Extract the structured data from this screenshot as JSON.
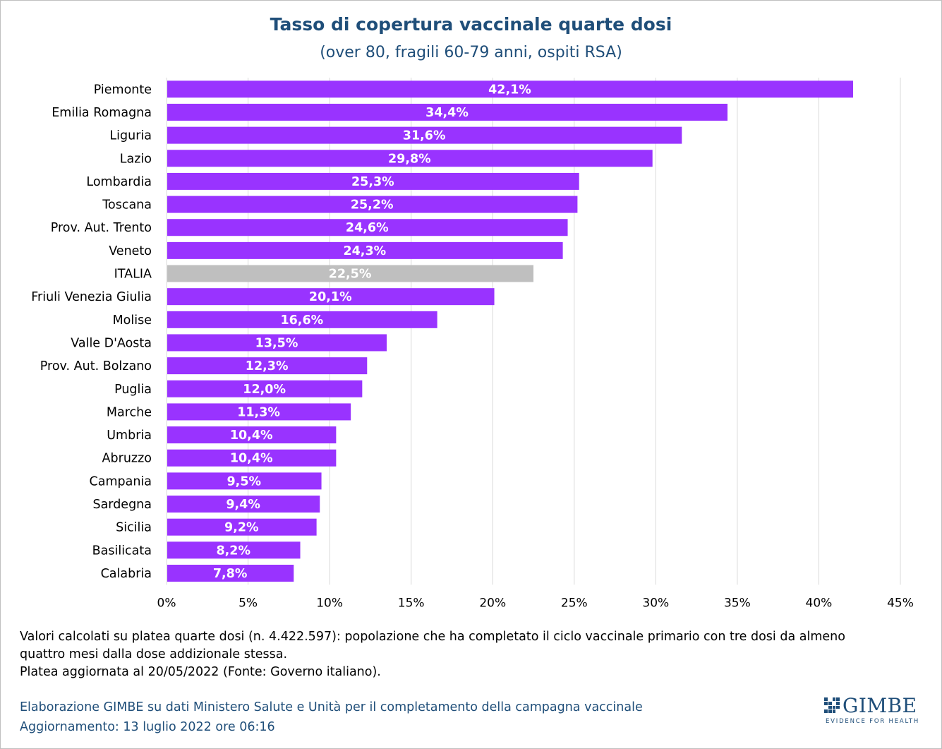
{
  "header": {
    "title": "Tasso di copertura vaccinale quarte dosi",
    "subtitle": "(over 80, fragili 60-79 anni, ospiti RSA)"
  },
  "chart_data": {
    "type": "bar",
    "orientation": "horizontal",
    "title": "Tasso di copertura vaccinale quarte dosi",
    "subtitle": "(over 80, fragili 60-79 anni, ospiti RSA)",
    "categories": [
      "Piemonte",
      "Emilia Romagna",
      "Liguria",
      "Lazio",
      "Lombardia",
      "Toscana",
      "Prov. Aut. Trento",
      "Veneto",
      "ITALIA",
      "Friuli Venezia Giulia",
      "Molise",
      "Valle D'Aosta",
      "Prov. Aut. Bolzano",
      "Puglia",
      "Marche",
      "Umbria",
      "Abruzzo",
      "Campania",
      "Sardegna",
      "Sicilia",
      "Basilicata",
      "Calabria"
    ],
    "values": [
      42.1,
      34.4,
      31.6,
      29.8,
      25.3,
      25.2,
      24.6,
      24.3,
      22.5,
      20.1,
      16.6,
      13.5,
      12.3,
      12.0,
      11.3,
      10.4,
      10.4,
      9.5,
      9.4,
      9.2,
      8.2,
      7.8
    ],
    "value_labels": [
      "42,1%",
      "34,4%",
      "31,6%",
      "29,8%",
      "25,3%",
      "25,2%",
      "24,6%",
      "24,3%",
      "22,5%",
      "20,1%",
      "16,6%",
      "13,5%",
      "12,3%",
      "12,0%",
      "11,3%",
      "10,4%",
      "10,4%",
      "9,5%",
      "9,4%",
      "9,2%",
      "8,2%",
      "7,8%"
    ],
    "highlight_category": "ITALIA",
    "colors": {
      "bar": "#9933ff",
      "highlight": "#bfbfbf",
      "label": "#ffffff",
      "grid": "#d9d9d9"
    },
    "xlim": [
      0,
      45
    ],
    "xticks": [
      0,
      5,
      10,
      15,
      20,
      25,
      30,
      35,
      40,
      45
    ],
    "xtick_labels": [
      "0%",
      "5%",
      "10%",
      "15%",
      "20%",
      "25%",
      "30%",
      "35%",
      "40%",
      "45%"
    ],
    "grid": true,
    "legend": false
  },
  "notes": {
    "line1": "Valori calcolati su platea quarte dosi (n. 4.422.597): popolazione che ha completato il ciclo vaccinale primario con tre dosi da almeno",
    "line2": "quattro mesi dalla dose addizionale stessa.",
    "line3": "Platea aggiornata al 20/05/2022 (Fonte: Governo italiano)."
  },
  "credits": {
    "source": "Elaborazione GIMBE su dati Ministero Salute e Unità per il completamento della campagna vaccinale",
    "updated": "Aggiornamento: 13 luglio 2022 ore 06:16"
  },
  "logo": {
    "name": "GIMBE",
    "tagline": "EVIDENCE FOR HEALTH"
  }
}
